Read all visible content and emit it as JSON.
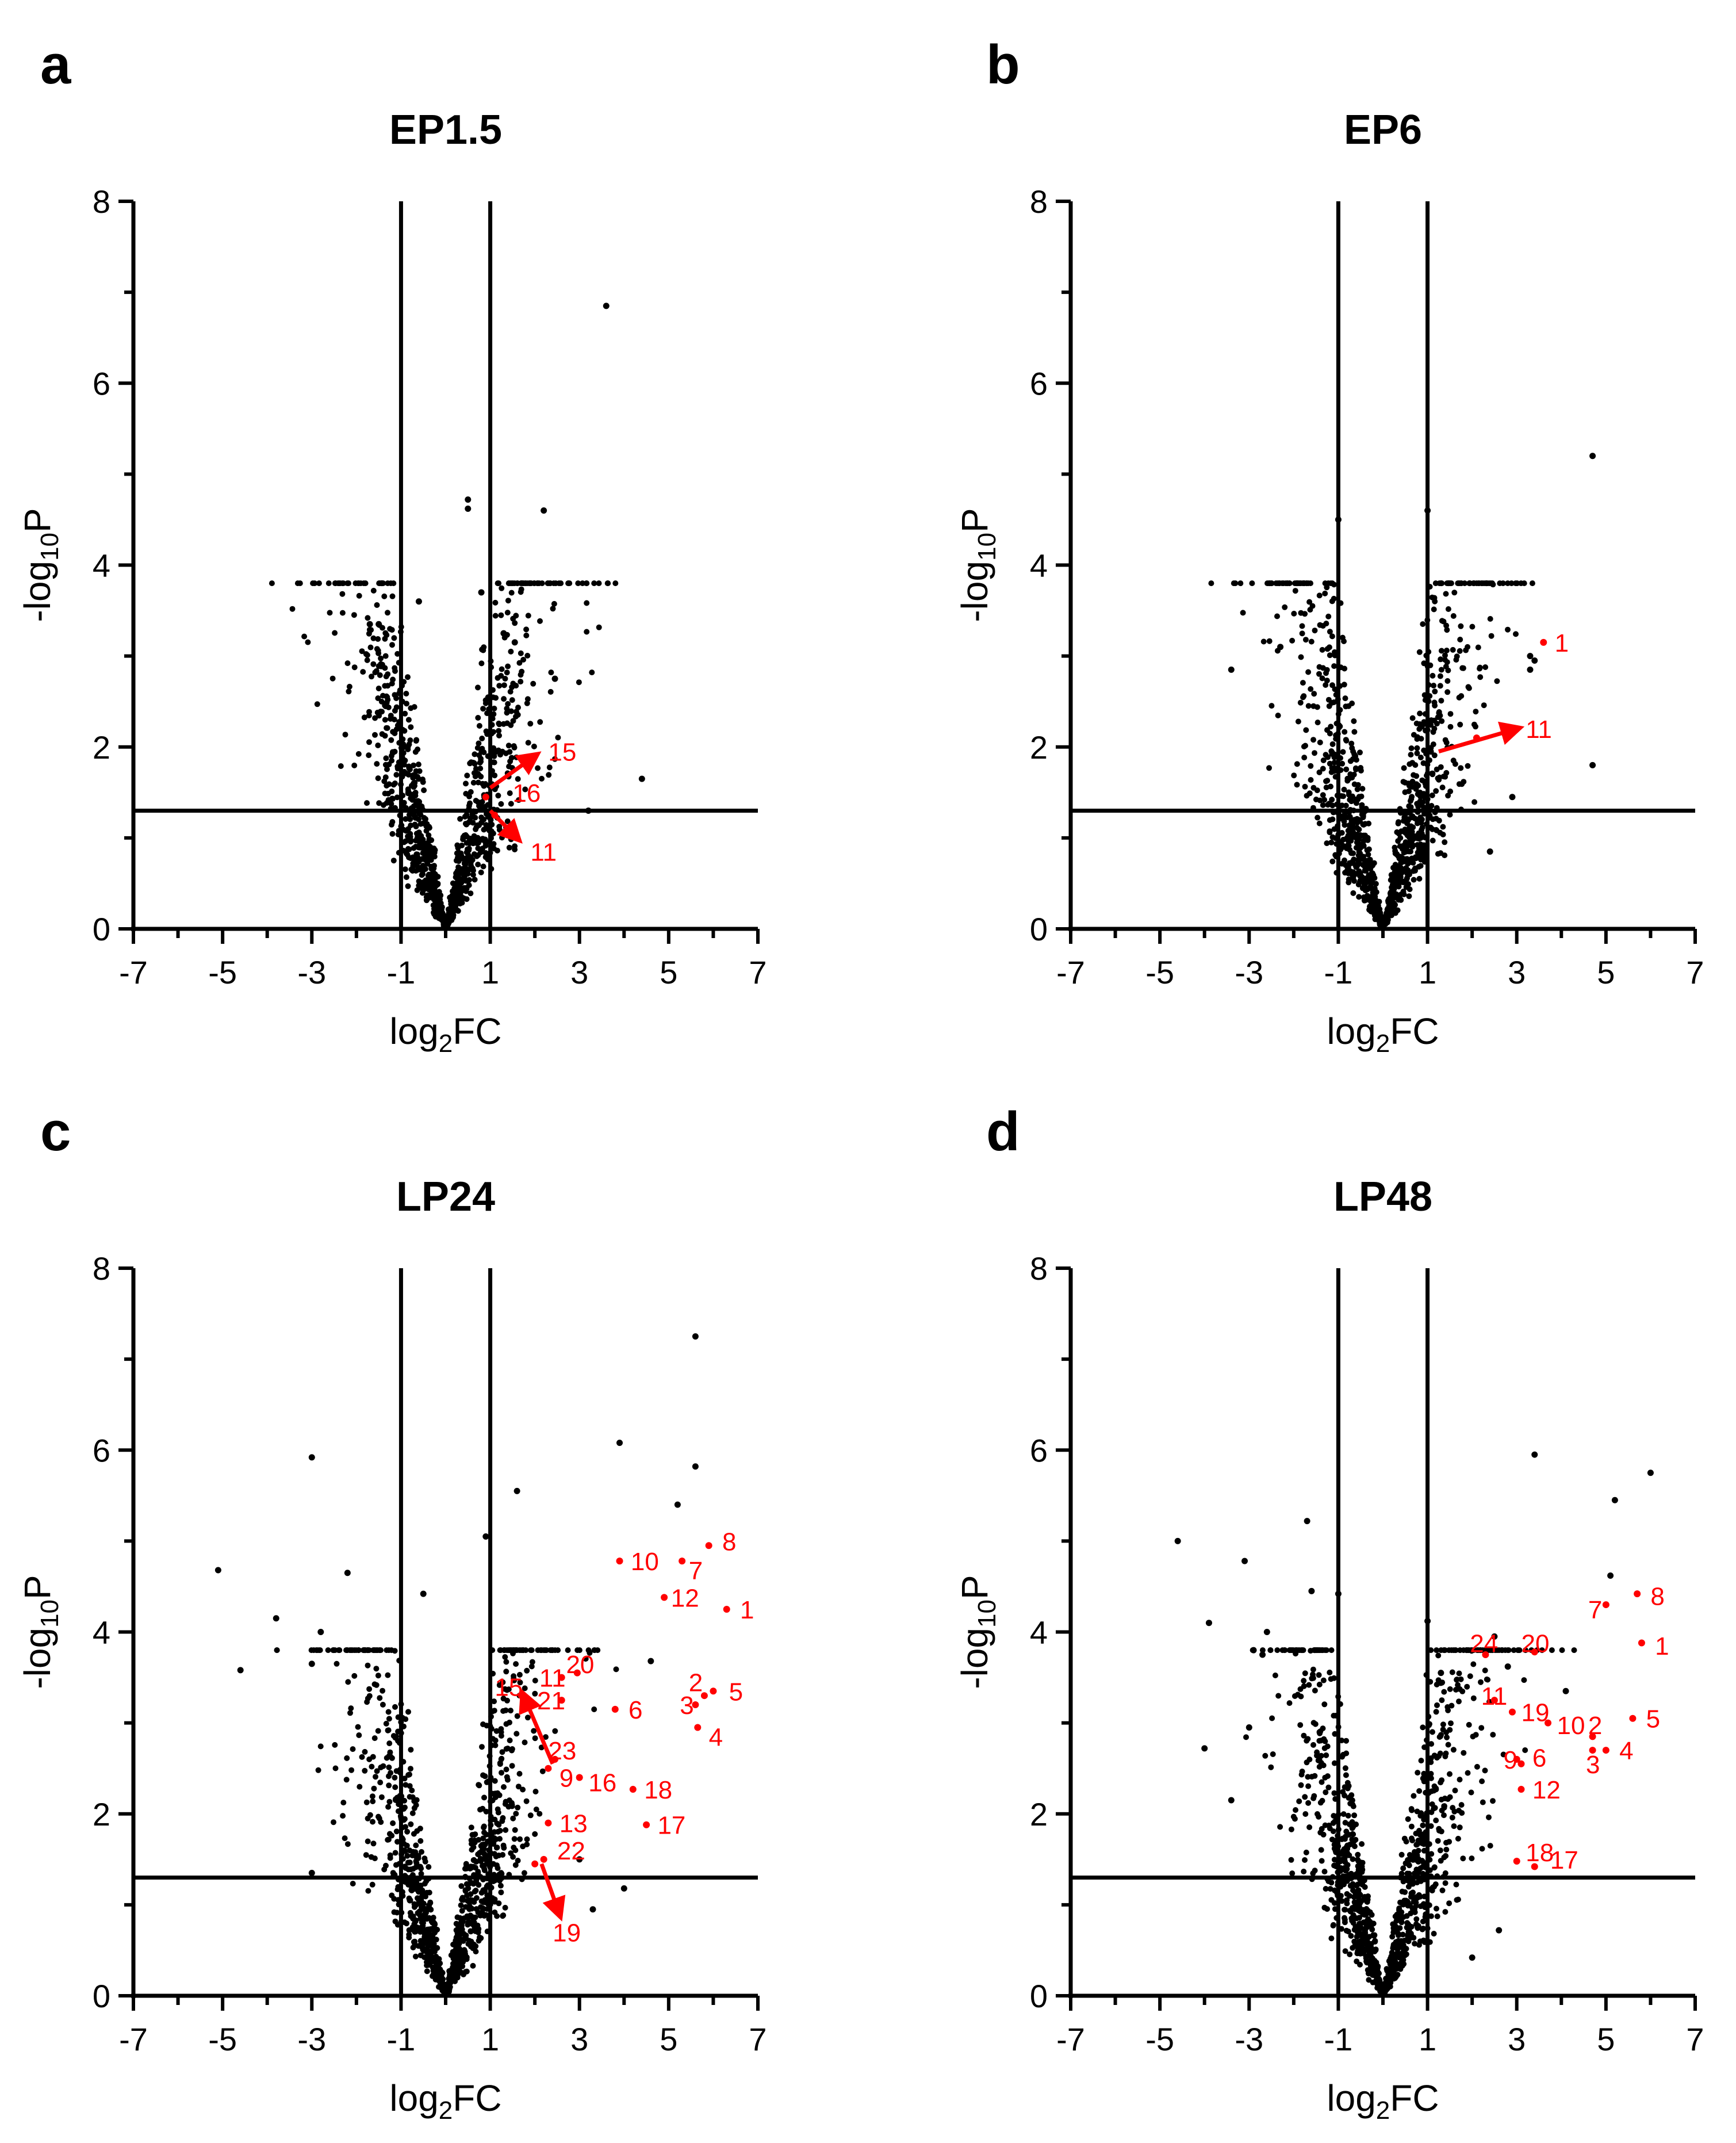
{
  "figure": {
    "highlight_color": "#ff0000",
    "point_color": "#000000"
  },
  "chart_data": [
    {
      "panel": "a",
      "type": "scatter",
      "title": "EP1.5",
      "xlabel": "log2FC",
      "ylabel": "-log10P",
      "xlim": [
        -7,
        7
      ],
      "ylim": [
        0,
        8
      ],
      "xticks": [
        "-7",
        "-5",
        "-3",
        "-1",
        "1",
        "3",
        "5",
        "7"
      ],
      "yticks": [
        "0",
        "2",
        "4",
        "6",
        "8"
      ],
      "thresholds": {
        "x": [
          -1,
          1
        ],
        "y": 1.3
      },
      "highlighted": [
        {
          "label": "15",
          "x": 2.0,
          "y": 1.9,
          "arrow_from": [
            1.0,
            1.55
          ],
          "label_pos": [
            2.3,
            1.95
          ]
        },
        {
          "label": "16",
          "x": 0.9,
          "y": 1.45,
          "label_pos": [
            1.5,
            1.5
          ]
        },
        {
          "label": "11",
          "x": 1.1,
          "y": 1.25,
          "arrow_from": [
            1.0,
            1.3
          ],
          "arrow_to": [
            1.6,
            1.0
          ],
          "label_pos": [
            1.9,
            0.85
          ]
        }
      ],
      "outliers": [
        [
          3.6,
          6.85
        ],
        [
          0.5,
          4.72
        ],
        [
          2.2,
          4.6
        ],
        [
          0.5,
          4.62
        ],
        [
          -0.6,
          3.6
        ],
        [
          -1.5,
          3.35
        ],
        [
          -1.7,
          3.35
        ],
        [
          0.8,
          3.7
        ],
        [
          1.3,
          3.25
        ],
        [
          1.55,
          3.15
        ],
        [
          2.45,
          2.75
        ],
        [
          4.4,
          1.65
        ],
        [
          3.2,
          1.3
        ]
      ],
      "cloud_seed": 11
    },
    {
      "panel": "b",
      "type": "scatter",
      "title": "EP6",
      "xlabel": "log2FC",
      "ylabel": "-log10P",
      "xlim": [
        -7,
        7
      ],
      "ylim": [
        0,
        8
      ],
      "xticks": [
        "-7",
        "-5",
        "-3",
        "-1",
        "1",
        "3",
        "5",
        "7"
      ],
      "yticks": [
        "0",
        "2",
        "4",
        "6",
        "8"
      ],
      "thresholds": {
        "x": [
          -1,
          1
        ],
        "y": 1.3
      },
      "highlighted": [
        {
          "label": "1",
          "x": 3.6,
          "y": 3.15,
          "label_pos": [
            3.85,
            3.15
          ]
        },
        {
          "label": "11",
          "x": 2.1,
          "y": 2.1,
          "arrow_from": [
            1.25,
            1.95
          ],
          "arrow_to": [
            3.0,
            2.2
          ],
          "label_pos": [
            3.2,
            2.2
          ]
        }
      ],
      "outliers": [
        [
          4.7,
          5.2
        ],
        [
          -1.0,
          4.5
        ],
        [
          1.0,
          4.6
        ],
        [
          3.3,
          3.0
        ],
        [
          3.3,
          2.85
        ],
        [
          3.4,
          2.95
        ],
        [
          4.7,
          1.8
        ],
        [
          -3.4,
          2.85
        ],
        [
          -2.3,
          3.1
        ],
        [
          2.9,
          1.45
        ],
        [
          2.4,
          0.85
        ]
      ],
      "cloud_seed": 23
    },
    {
      "panel": "c",
      "type": "scatter",
      "title": "LP24",
      "xlabel": "log2FC",
      "ylabel": "-log10P",
      "xlim": [
        -7,
        7
      ],
      "ylim": [
        0,
        8
      ],
      "xticks": [
        "-7",
        "-5",
        "-3",
        "-1",
        "1",
        "3",
        "5",
        "7"
      ],
      "yticks": [
        "0",
        "2",
        "4",
        "6",
        "8"
      ],
      "thresholds": {
        "x": [
          -1,
          1
        ],
        "y": 1.3
      },
      "highlighted": [
        {
          "label": "8",
          "x": 5.9,
          "y": 4.95,
          "label_pos": [
            6.2,
            5.0
          ]
        },
        {
          "label": "10",
          "x": 3.9,
          "y": 4.78,
          "label_pos": [
            4.15,
            4.78
          ]
        },
        {
          "label": "7",
          "x": 5.3,
          "y": 4.78,
          "label_pos": [
            5.45,
            4.68
          ]
        },
        {
          "label": "12",
          "x": 4.9,
          "y": 4.38,
          "label_pos": [
            5.05,
            4.38
          ]
        },
        {
          "label": "1",
          "x": 6.3,
          "y": 4.25,
          "label_pos": [
            6.6,
            4.25
          ]
        },
        {
          "label": "20",
          "x": 2.95,
          "y": 3.55,
          "label_pos": [
            2.7,
            3.65
          ]
        },
        {
          "label": "11",
          "x": 2.6,
          "y": 3.5,
          "label_pos": [
            2.1,
            3.5
          ]
        },
        {
          "label": "15",
          "x": 1.7,
          "y": 3.3,
          "arrow_from": [
            2.4,
            2.55
          ],
          "arrow_to": [
            1.75,
            3.3
          ],
          "label_pos": [
            1.1,
            3.4
          ]
        },
        {
          "label": "21",
          "x": 2.6,
          "y": 3.25,
          "label_pos": [
            2.05,
            3.25
          ]
        },
        {
          "label": "2",
          "x": 5.8,
          "y": 3.3,
          "label_pos": [
            5.45,
            3.45
          ]
        },
        {
          "label": "5",
          "x": 6.0,
          "y": 3.35,
          "label_pos": [
            6.35,
            3.35
          ]
        },
        {
          "label": "6",
          "x": 3.8,
          "y": 3.15,
          "label_pos": [
            4.1,
            3.15
          ]
        },
        {
          "label": "3",
          "x": 5.6,
          "y": 3.2,
          "label_pos": [
            5.25,
            3.2
          ]
        },
        {
          "label": "4",
          "x": 5.65,
          "y": 2.95,
          "label_pos": [
            5.9,
            2.85
          ]
        },
        {
          "label": "23",
          "x": 2.45,
          "y": 2.6,
          "label_pos": [
            2.3,
            2.7
          ]
        },
        {
          "label": "9",
          "x": 2.3,
          "y": 2.5,
          "label_pos": [
            2.55,
            2.4
          ]
        },
        {
          "label": "16",
          "x": 3.0,
          "y": 2.4,
          "label_pos": [
            3.2,
            2.35
          ]
        },
        {
          "label": "18",
          "x": 4.2,
          "y": 2.27,
          "label_pos": [
            4.45,
            2.27
          ]
        },
        {
          "label": "13",
          "x": 2.3,
          "y": 1.9,
          "label_pos": [
            2.55,
            1.9
          ]
        },
        {
          "label": "17",
          "x": 4.5,
          "y": 1.88,
          "label_pos": [
            4.75,
            1.88
          ]
        },
        {
          "label": "22",
          "x": 2.2,
          "y": 1.5,
          "label_pos": [
            2.5,
            1.6
          ]
        },
        {
          "label": "19",
          "x": 2.0,
          "y": 1.45,
          "arrow_from": [
            2.15,
            1.45
          ],
          "arrow_to": [
            2.55,
            0.9
          ],
          "label_pos": [
            2.4,
            0.7
          ]
        }
      ],
      "outliers": [
        [
          5.6,
          7.25
        ],
        [
          3.9,
          6.08
        ],
        [
          5.6,
          5.82
        ],
        [
          5.2,
          5.4
        ],
        [
          -3.0,
          5.92
        ],
        [
          -5.1,
          4.68
        ],
        [
          -2.2,
          4.65
        ],
        [
          -3.8,
          4.15
        ],
        [
          -2.8,
          4.0
        ],
        [
          -4.6,
          3.58
        ],
        [
          -3.0,
          3.65
        ],
        [
          -0.5,
          4.42
        ],
        [
          1.6,
          5.55
        ],
        [
          0.9,
          5.05
        ],
        [
          4.6,
          3.68
        ],
        [
          3.0,
          1.5
        ],
        [
          4.0,
          1.18
        ],
        [
          3.3,
          0.95
        ],
        [
          -3.0,
          1.35
        ],
        [
          -0.8,
          1.05
        ]
      ],
      "cloud_seed": 37
    },
    {
      "panel": "d",
      "type": "scatter",
      "title": "LP48",
      "xlabel": "log2FC",
      "ylabel": "-log10P",
      "xlim": [
        -7,
        7
      ],
      "ylim": [
        0,
        8
      ],
      "xticks": [
        "-7",
        "-5",
        "-3",
        "-1",
        "1",
        "3",
        "5",
        "7"
      ],
      "yticks": [
        "0",
        "2",
        "4",
        "6",
        "8"
      ],
      "thresholds": {
        "x": [
          -1,
          1
        ],
        "y": 1.3
      },
      "highlighted": [
        {
          "label": "8",
          "x": 5.7,
          "y": 4.42,
          "label_pos": [
            6.0,
            4.4
          ]
        },
        {
          "label": "7",
          "x": 5.0,
          "y": 4.3,
          "label_pos": [
            4.6,
            4.25
          ]
        },
        {
          "label": "24",
          "x": 2.3,
          "y": 3.75,
          "label_pos": [
            1.95,
            3.88
          ]
        },
        {
          "label": "20",
          "x": 3.4,
          "y": 3.78,
          "label_pos": [
            3.1,
            3.88
          ]
        },
        {
          "label": "1",
          "x": 5.8,
          "y": 3.88,
          "label_pos": [
            6.1,
            3.85
          ]
        },
        {
          "label": "11",
          "x": 2.5,
          "y": 3.25,
          "label_pos": [
            2.2,
            3.3
          ]
        },
        {
          "label": "19",
          "x": 2.9,
          "y": 3.12,
          "label_pos": [
            3.1,
            3.12
          ]
        },
        {
          "label": "10",
          "x": 3.7,
          "y": 3.0,
          "label_pos": [
            3.9,
            2.98
          ]
        },
        {
          "label": "2",
          "x": 4.7,
          "y": 2.85,
          "label_pos": [
            4.6,
            2.98
          ]
        },
        {
          "label": "5",
          "x": 5.6,
          "y": 3.05,
          "label_pos": [
            5.9,
            3.05
          ]
        },
        {
          "label": "9",
          "x": 3.0,
          "y": 2.6,
          "label_pos": [
            2.7,
            2.6
          ]
        },
        {
          "label": "6",
          "x": 3.1,
          "y": 2.55,
          "label_pos": [
            3.35,
            2.62
          ]
        },
        {
          "label": "4",
          "x": 5.0,
          "y": 2.7,
          "label_pos": [
            5.3,
            2.7
          ]
        },
        {
          "label": "3",
          "x": 4.7,
          "y": 2.7,
          "label_pos": [
            4.55,
            2.55
          ]
        },
        {
          "label": "12",
          "x": 3.1,
          "y": 2.27,
          "label_pos": [
            3.35,
            2.27
          ]
        },
        {
          "label": "18",
          "x": 3.0,
          "y": 1.48,
          "label_pos": [
            3.2,
            1.58
          ]
        },
        {
          "label": "17",
          "x": 3.4,
          "y": 1.42,
          "label_pos": [
            3.75,
            1.5
          ]
        }
      ],
      "outliers": [
        [
          3.4,
          5.95
        ],
        [
          5.2,
          5.45
        ],
        [
          6.0,
          5.75
        ],
        [
          5.1,
          4.62
        ],
        [
          -4.6,
          5.0
        ],
        [
          -1.7,
          5.22
        ],
        [
          -3.1,
          4.78
        ],
        [
          -1.6,
          4.45
        ],
        [
          -1.0,
          4.42
        ],
        [
          -3.9,
          4.1
        ],
        [
          -2.6,
          4.0
        ],
        [
          -2.9,
          3.8
        ],
        [
          -2.7,
          3.75
        ],
        [
          -3.0,
          2.95
        ],
        [
          -4.0,
          2.72
        ],
        [
          -3.4,
          2.15
        ],
        [
          1.0,
          4.12
        ],
        [
          2.5,
          3.95
        ],
        [
          2.8,
          3.62
        ],
        [
          1.3,
          3.55
        ],
        [
          4.1,
          3.35
        ],
        [
          2.6,
          0.72
        ],
        [
          2.0,
          0.42
        ]
      ],
      "cloud_seed": 53
    }
  ]
}
